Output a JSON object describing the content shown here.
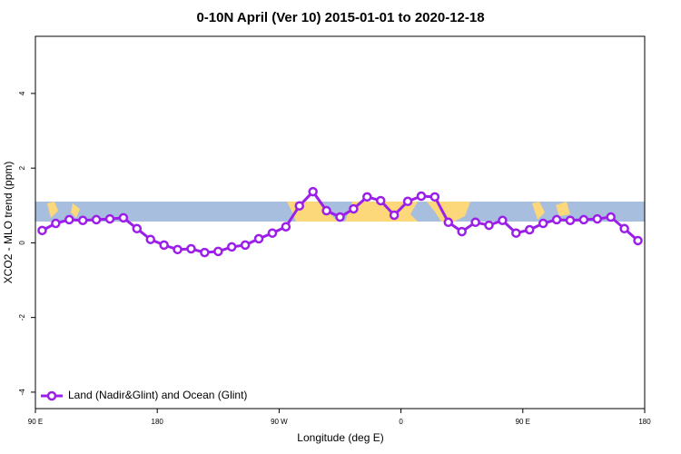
{
  "chart_data": {
    "type": "line",
    "title": "0-10N April (Ver 10)   2015-01-01 to 2020-12-18",
    "x_label": "Longitude (deg E)",
    "y_label": "XCO2 - MLO trend (ppm)",
    "x": [
      95,
      105,
      115,
      125,
      135,
      145,
      155,
      165,
      175,
      185,
      195,
      205,
      215,
      225,
      235,
      245,
      255,
      265,
      275,
      285,
      295,
      305,
      315,
      325,
      335,
      345,
      355,
      365,
      375,
      385,
      395,
      405,
      415,
      425,
      435,
      445,
      455,
      465,
      475,
      485,
      495,
      505,
      515,
      525,
      535
    ],
    "series": [
      {
        "name": "Land (Nadir&Glint) and Ocean (Glint)",
        "color": "#9b1fe8",
        "values": [
          0.33,
          0.52,
          0.62,
          0.6,
          0.62,
          0.64,
          0.67,
          0.38,
          0.09,
          -0.06,
          -0.18,
          -0.16,
          -0.26,
          -0.23,
          -0.11,
          -0.06,
          0.11,
          0.26,
          0.43,
          0.99,
          1.37,
          0.86,
          0.69,
          0.91,
          1.23,
          1.13,
          0.74,
          1.11,
          1.25,
          1.23,
          0.55,
          0.3,
          0.55,
          0.47,
          0.6,
          0.26,
          0.35,
          0.52,
          0.62,
          0.6,
          0.62,
          0.64,
          0.69,
          0.38,
          0.06
        ]
      }
    ],
    "xlim": [
      90,
      540
    ],
    "xticks": [
      {
        "value": 90,
        "label": "90 E"
      },
      180,
      {
        "value": 270,
        "label": "90 W"
      },
      {
        "value": 360,
        "label": "0"
      },
      {
        "value": 450,
        "label": "90 E"
      },
      {
        "value": 540,
        "label": "180"
      }
    ],
    "ylim": [
      -4.44,
      5.53
    ],
    "yticks": [
      -4,
      -2,
      0,
      2,
      4
    ],
    "legend": "bottom-left"
  }
}
